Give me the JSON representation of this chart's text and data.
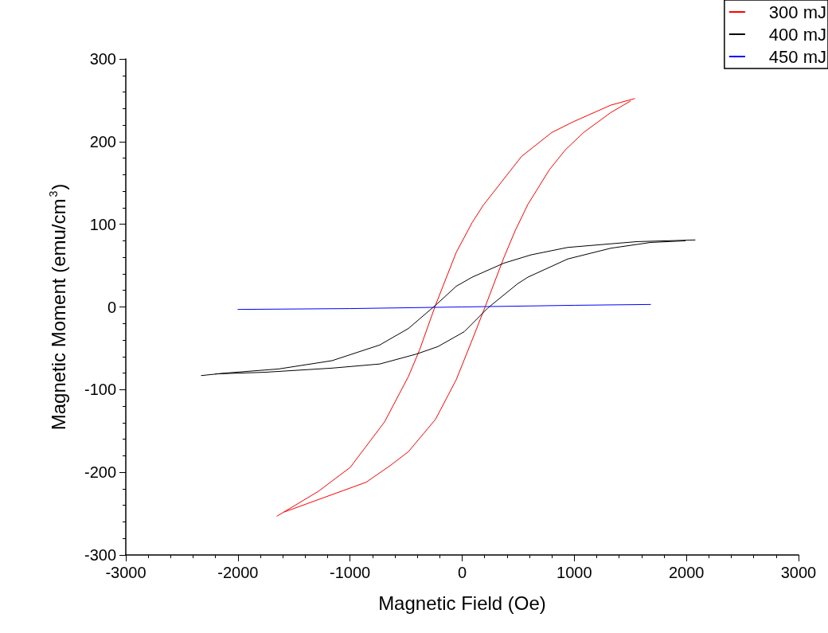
{
  "chart_data": {
    "type": "line",
    "xlabel": "Magnetic Field (Oe)",
    "ylabel": "Magnetic Moment (emu/cm$^{3}$)",
    "xlim": [
      -3000,
      3000
    ],
    "xticks": [
      -3000,
      -2000,
      -1000,
      0,
      1000,
      2000,
      3000
    ],
    "ylim": [
      -300,
      300
    ],
    "yticks": [
      -300,
      -200,
      -100,
      0,
      100,
      200,
      300
    ],
    "grid": false,
    "legend": "top right",
    "marker": "none",
    "line_style": "solid",
    "series": [
      {
        "name": "300 mJ",
        "color": "#ff0000",
        "x": [
          -1651,
          -1282,
          -998,
          -692,
          -479,
          -380,
          -238,
          -53,
          89,
          188,
          529,
          799,
          991,
          1324,
          1538
        ],
        "values": [
          -253,
          -223,
          -194,
          -139,
          -84,
          -52,
          2,
          66,
          102,
          123,
          182,
          211,
          224,
          244,
          252
        ]
      },
      {
        "color": "#ff0000",
        "x": [
          -1587,
          -856,
          -643,
          -479,
          -238,
          -53,
          89,
          210,
          373,
          472,
          586,
          778,
          920,
          1083,
          1324,
          1500
        ],
        "values": [
          -248,
          -212,
          -192,
          -175,
          -136,
          -88,
          -40,
          2,
          60,
          92,
          124,
          166,
          190,
          211,
          235,
          249
        ]
      },
      {
        "name": "400 mJ",
        "color": "#000000",
        "x": [
          -2326,
          -2113,
          -1637,
          -1161,
          -735,
          -479,
          -238,
          -53,
          89,
          373,
          614,
          941,
          1559,
          2077
        ],
        "values": [
          -83,
          -80,
          -75,
          -65,
          -46,
          -26,
          2,
          25,
          36,
          53,
          63,
          72,
          79,
          81
        ]
      },
      {
        "color": "#000000",
        "x": [
          -2200,
          -1758,
          -1161,
          -735,
          -408,
          -217,
          18,
          231,
          494,
          586,
          941,
          1324,
          1680,
          1990
        ],
        "values": [
          -81,
          -79,
          -74,
          -69,
          -57,
          -48,
          -30,
          -1,
          28,
          36,
          58,
          71,
          78,
          80
        ]
      },
      {
        "name": "450 mJ",
        "color": "#0000ff",
        "x": [
          -2000,
          -1000,
          0,
          1000,
          1680
        ],
        "values": [
          -3,
          -2,
          0,
          2,
          3
        ]
      }
    ]
  }
}
